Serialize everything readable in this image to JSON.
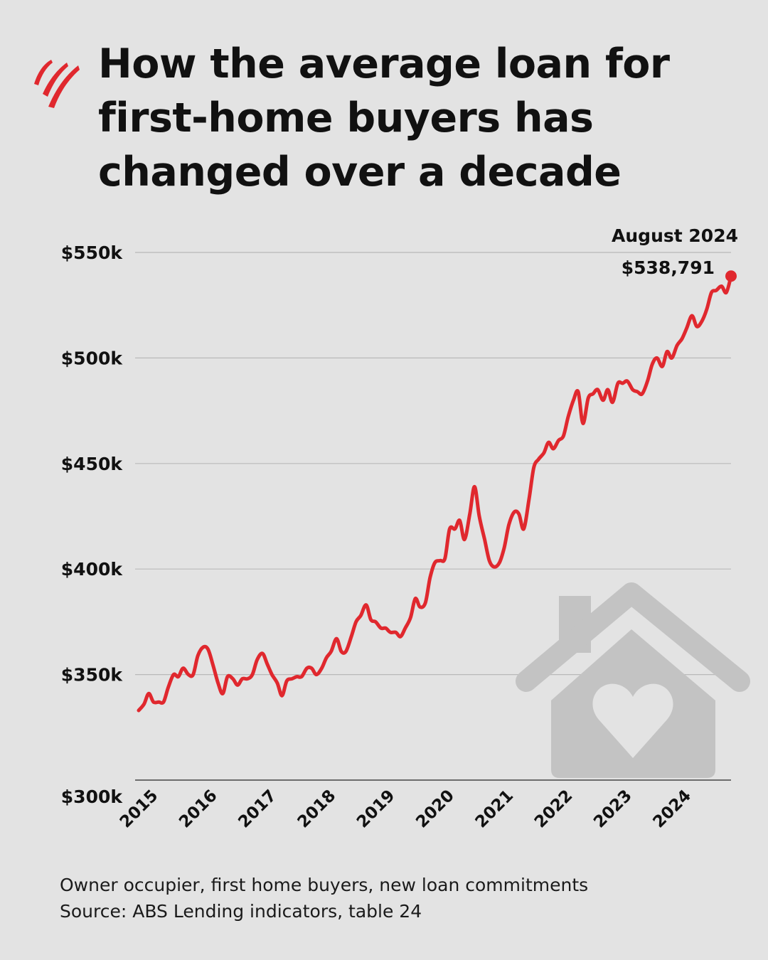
{
  "header": {
    "logo_icon": "sbs-wave-logo-icon",
    "title_lines": [
      "How the average loan for",
      "first-home buyers has",
      "changed over a decade"
    ]
  },
  "colors": {
    "background": "#e3e3e3",
    "line": "#e0282e",
    "gridline": "#b9b9b9",
    "house_icon": "#c3c3c3",
    "text": "#111111"
  },
  "chart_data": {
    "type": "line",
    "title": "",
    "xlabel": "",
    "ylabel": "",
    "ylim": [
      300000,
      550000
    ],
    "yticks": [
      550000,
      500000,
      450000,
      400000,
      350000,
      300000
    ],
    "ytick_labels": [
      "$550k",
      "$500k",
      "$450k",
      "$400k",
      "$350k",
      "$300k"
    ],
    "xticks": [
      2015,
      2016,
      2017,
      2018,
      2019,
      2020,
      2021,
      2022,
      2023,
      2024
    ],
    "xtick_labels": [
      "2015",
      "2016",
      "2017",
      "2018",
      "2019",
      "2020",
      "2021",
      "2022",
      "2023",
      "2024"
    ],
    "grid": "horizontal",
    "series": [
      {
        "values": [
          [
            2014.83,
            333000
          ],
          [
            2014.92,
            336000
          ],
          [
            2015.0,
            341000
          ],
          [
            2015.08,
            337000
          ],
          [
            2015.17,
            337000
          ],
          [
            2015.25,
            337000
          ],
          [
            2015.33,
            344000
          ],
          [
            2015.42,
            350000
          ],
          [
            2015.5,
            349000
          ],
          [
            2015.58,
            353000
          ],
          [
            2015.67,
            350000
          ],
          [
            2015.75,
            350000
          ],
          [
            2015.83,
            359000
          ],
          [
            2015.92,
            363000
          ],
          [
            2016.0,
            362000
          ],
          [
            2016.08,
            355000
          ],
          [
            2016.17,
            346000
          ],
          [
            2016.25,
            341000
          ],
          [
            2016.33,
            349000
          ],
          [
            2016.42,
            348000
          ],
          [
            2016.5,
            345000
          ],
          [
            2016.58,
            348000
          ],
          [
            2016.67,
            348000
          ],
          [
            2016.75,
            350000
          ],
          [
            2016.83,
            357000
          ],
          [
            2016.92,
            360000
          ],
          [
            2017.0,
            355000
          ],
          [
            2017.08,
            350000
          ],
          [
            2017.17,
            346000
          ],
          [
            2017.25,
            340000
          ],
          [
            2017.33,
            347000
          ],
          [
            2017.42,
            348000
          ],
          [
            2017.5,
            349000
          ],
          [
            2017.58,
            349000
          ],
          [
            2017.67,
            353000
          ],
          [
            2017.75,
            353000
          ],
          [
            2017.83,
            350000
          ],
          [
            2017.92,
            353000
          ],
          [
            2018.0,
            358000
          ],
          [
            2018.08,
            361000
          ],
          [
            2018.17,
            367000
          ],
          [
            2018.25,
            361000
          ],
          [
            2018.33,
            361000
          ],
          [
            2018.42,
            368000
          ],
          [
            2018.5,
            375000
          ],
          [
            2018.58,
            378000
          ],
          [
            2018.67,
            383000
          ],
          [
            2018.75,
            376000
          ],
          [
            2018.83,
            375000
          ],
          [
            2018.92,
            372000
          ],
          [
            2019.0,
            372000
          ],
          [
            2019.08,
            370000
          ],
          [
            2019.17,
            370000
          ],
          [
            2019.25,
            368000
          ],
          [
            2019.33,
            372000
          ],
          [
            2019.42,
            377000
          ],
          [
            2019.5,
            386000
          ],
          [
            2019.58,
            382000
          ],
          [
            2019.67,
            384000
          ],
          [
            2019.75,
            396000
          ],
          [
            2019.83,
            403000
          ],
          [
            2019.92,
            404000
          ],
          [
            2020.0,
            405000
          ],
          [
            2020.08,
            419000
          ],
          [
            2020.17,
            419000
          ],
          [
            2020.25,
            423000
          ],
          [
            2020.33,
            414000
          ],
          [
            2020.42,
            426000
          ],
          [
            2020.5,
            439000
          ],
          [
            2020.58,
            425000
          ],
          [
            2020.67,
            414000
          ],
          [
            2020.75,
            404000
          ],
          [
            2020.83,
            401000
          ],
          [
            2020.92,
            403000
          ],
          [
            2021.0,
            410000
          ],
          [
            2021.08,
            421000
          ],
          [
            2021.17,
            427000
          ],
          [
            2021.25,
            426000
          ],
          [
            2021.33,
            419000
          ],
          [
            2021.42,
            433000
          ],
          [
            2021.5,
            448000
          ],
          [
            2021.58,
            452000
          ],
          [
            2021.67,
            455000
          ],
          [
            2021.75,
            460000
          ],
          [
            2021.83,
            457000
          ],
          [
            2021.92,
            461000
          ],
          [
            2022.0,
            463000
          ],
          [
            2022.08,
            472000
          ],
          [
            2022.17,
            480000
          ],
          [
            2022.25,
            484000
          ],
          [
            2022.33,
            469000
          ],
          [
            2022.42,
            481000
          ],
          [
            2022.5,
            483000
          ],
          [
            2022.58,
            485000
          ],
          [
            2022.67,
            480000
          ],
          [
            2022.75,
            485000
          ],
          [
            2022.83,
            479000
          ],
          [
            2022.92,
            488000
          ],
          [
            2023.0,
            488000
          ],
          [
            2023.08,
            489000
          ],
          [
            2023.17,
            485000
          ],
          [
            2023.25,
            484000
          ],
          [
            2023.33,
            483000
          ],
          [
            2023.42,
            489000
          ],
          [
            2023.5,
            497000
          ],
          [
            2023.58,
            500000
          ],
          [
            2023.67,
            496000
          ],
          [
            2023.75,
            503000
          ],
          [
            2023.83,
            500000
          ],
          [
            2023.92,
            506000
          ],
          [
            2024.0,
            509000
          ],
          [
            2024.08,
            514000
          ],
          [
            2024.17,
            520000
          ],
          [
            2024.25,
            515000
          ],
          [
            2024.33,
            517000
          ],
          [
            2024.42,
            523000
          ],
          [
            2024.5,
            531000
          ],
          [
            2024.58,
            532000
          ],
          [
            2024.67,
            534000
          ],
          [
            2024.75,
            531000
          ],
          [
            2024.83,
            538791
          ]
        ]
      }
    ],
    "annotations": [
      {
        "x": 2024.83,
        "y": 538791,
        "label_line1": "August 2024",
        "label_line2": "$538,791"
      }
    ]
  },
  "decoration": {
    "house_icon": "house-heart-icon"
  },
  "footer": {
    "line1": "Owner occupier, first home buyers, new loan commitments",
    "line2": "Source: ABS Lending indicators, table 24"
  }
}
